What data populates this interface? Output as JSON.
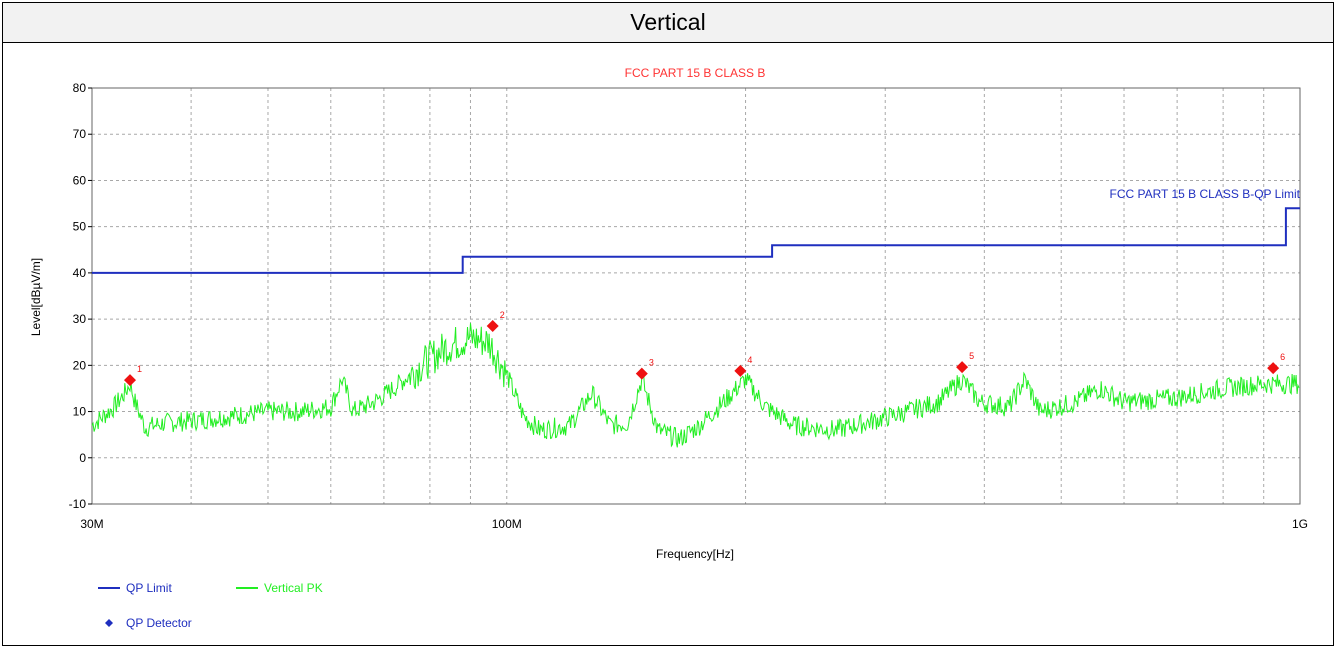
{
  "header": {
    "title": "Vertical"
  },
  "chart_data": {
    "type": "line",
    "title": "FCC PART 15 B CLASS B",
    "xlabel": "Frequency[Hz]",
    "ylabel": "Level[dBµV/m]",
    "x_scale": "log",
    "xlim": [
      30000000,
      1000000000
    ],
    "ylim": [
      -10,
      80
    ],
    "y_ticks": [
      -10,
      0,
      10,
      20,
      30,
      40,
      50,
      60,
      70,
      80
    ],
    "x_tick_labels": [
      {
        "value": 30000000,
        "label": "30M"
      },
      {
        "value": 100000000,
        "label": "100M"
      },
      {
        "value": 1000000000,
        "label": "1G"
      }
    ],
    "x_minor_grid": [
      40000000,
      50000000,
      60000000,
      70000000,
      80000000,
      90000000,
      200000000,
      300000000,
      400000000,
      500000000,
      600000000,
      700000000,
      800000000,
      900000000
    ],
    "grid": true,
    "limit_line_label": "FCC PART 15 B CLASS B-QP Limit",
    "series": [
      {
        "name": "QP Limit",
        "color": "#1f2fbf",
        "step": true,
        "points": [
          [
            30000000,
            40.0
          ],
          [
            88000000,
            40.0
          ],
          [
            88000000,
            43.5
          ],
          [
            216000000,
            43.5
          ],
          [
            216000000,
            46.0
          ],
          [
            960000000,
            46.0
          ],
          [
            960000000,
            54.0
          ],
          [
            1000000000,
            54.0
          ]
        ]
      },
      {
        "name": "Vertical PK",
        "color": "#22ee22",
        "points": [
          [
            30000000,
            7
          ],
          [
            31000000,
            9
          ],
          [
            32000000,
            11
          ],
          [
            33000000,
            14
          ],
          [
            33500000,
            16
          ],
          [
            34000000,
            12
          ],
          [
            35000000,
            6.5
          ],
          [
            37000000,
            7.5
          ],
          [
            40000000,
            8
          ],
          [
            45000000,
            9
          ],
          [
            50000000,
            10
          ],
          [
            55000000,
            10
          ],
          [
            60000000,
            11
          ],
          [
            62000000,
            17
          ],
          [
            64000000,
            10
          ],
          [
            68000000,
            12
          ],
          [
            72000000,
            15
          ],
          [
            78000000,
            20
          ],
          [
            84000000,
            24
          ],
          [
            90000000,
            26
          ],
          [
            95000000,
            25
          ],
          [
            100000000,
            18
          ],
          [
            105000000,
            9
          ],
          [
            110000000,
            6
          ],
          [
            120000000,
            7
          ],
          [
            128000000,
            14
          ],
          [
            135000000,
            7
          ],
          [
            142000000,
            7.5
          ],
          [
            148000000,
            17
          ],
          [
            155000000,
            6
          ],
          [
            165000000,
            4
          ],
          [
            175000000,
            7
          ],
          [
            190000000,
            13
          ],
          [
            200000000,
            17
          ],
          [
            212000000,
            11
          ],
          [
            230000000,
            7
          ],
          [
            260000000,
            6
          ],
          [
            290000000,
            8
          ],
          [
            320000000,
            10
          ],
          [
            350000000,
            12
          ],
          [
            375000000,
            17
          ],
          [
            395000000,
            12
          ],
          [
            430000000,
            11
          ],
          [
            450000000,
            17
          ],
          [
            470000000,
            10
          ],
          [
            520000000,
            12
          ],
          [
            560000000,
            15
          ],
          [
            600000000,
            12
          ],
          [
            700000000,
            13
          ],
          [
            800000000,
            15
          ],
          [
            900000000,
            16
          ],
          [
            950000000,
            16
          ],
          [
            1000000000,
            16
          ]
        ]
      }
    ],
    "markers": [
      {
        "label": "1",
        "x": 33500000,
        "y": 16.8
      },
      {
        "label": "2",
        "x": 96000000,
        "y": 28.5
      },
      {
        "label": "3",
        "x": 148000000,
        "y": 18.2
      },
      {
        "label": "4",
        "x": 197000000,
        "y": 18.8
      },
      {
        "label": "5",
        "x": 375000000,
        "y": 19.6
      },
      {
        "label": "6",
        "x": 925000000,
        "y": 19.4
      }
    ],
    "legend": [
      {
        "name": "QP Limit",
        "type": "line",
        "color": "#1f2fbf"
      },
      {
        "name": "Vertical PK",
        "type": "line",
        "color": "#22ee22"
      },
      {
        "name": "QP Detector",
        "type": "diamond",
        "color": "#1f2fbf"
      }
    ]
  }
}
